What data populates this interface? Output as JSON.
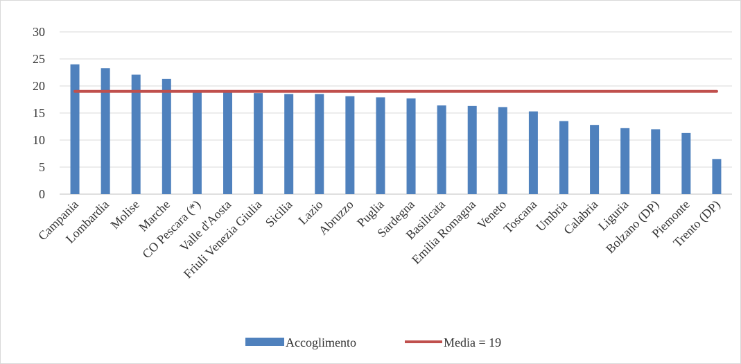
{
  "chart_data": {
    "type": "bar",
    "categories": [
      "Campania",
      "Lombardia",
      "Molise",
      "Marche",
      "CO Pescara (*)",
      "Valle d'Aosta",
      "Friuli Venezia Giulia",
      "Sicilia",
      "Lazio",
      "Abruzzo",
      "Puglia",
      "Sardegna",
      "Basilicata",
      "Emilia Romagna",
      "Veneto",
      "Toscana",
      "Umbria",
      "Calabria",
      "Liguria",
      "Bolzano (DP)",
      "Piemonte",
      "Trento (DP)"
    ],
    "series": [
      {
        "name": "Accoglimento",
        "type": "bar",
        "color": "#4f81bd",
        "values": [
          24.0,
          23.3,
          22.1,
          21.3,
          19.1,
          19.0,
          18.7,
          18.5,
          18.5,
          18.1,
          17.9,
          17.7,
          16.4,
          16.3,
          16.1,
          15.3,
          13.5,
          12.8,
          12.2,
          12.0,
          11.3,
          6.5
        ]
      },
      {
        "name": "Media = 19",
        "type": "line",
        "color": "#c0504d",
        "value": 19
      }
    ],
    "yticks": [
      0,
      5,
      10,
      15,
      20,
      25,
      30
    ],
    "ylim": [
      0,
      30
    ],
    "grid": true,
    "legend": "bottom",
    "title": "",
    "xlabel": "",
    "ylabel": ""
  }
}
